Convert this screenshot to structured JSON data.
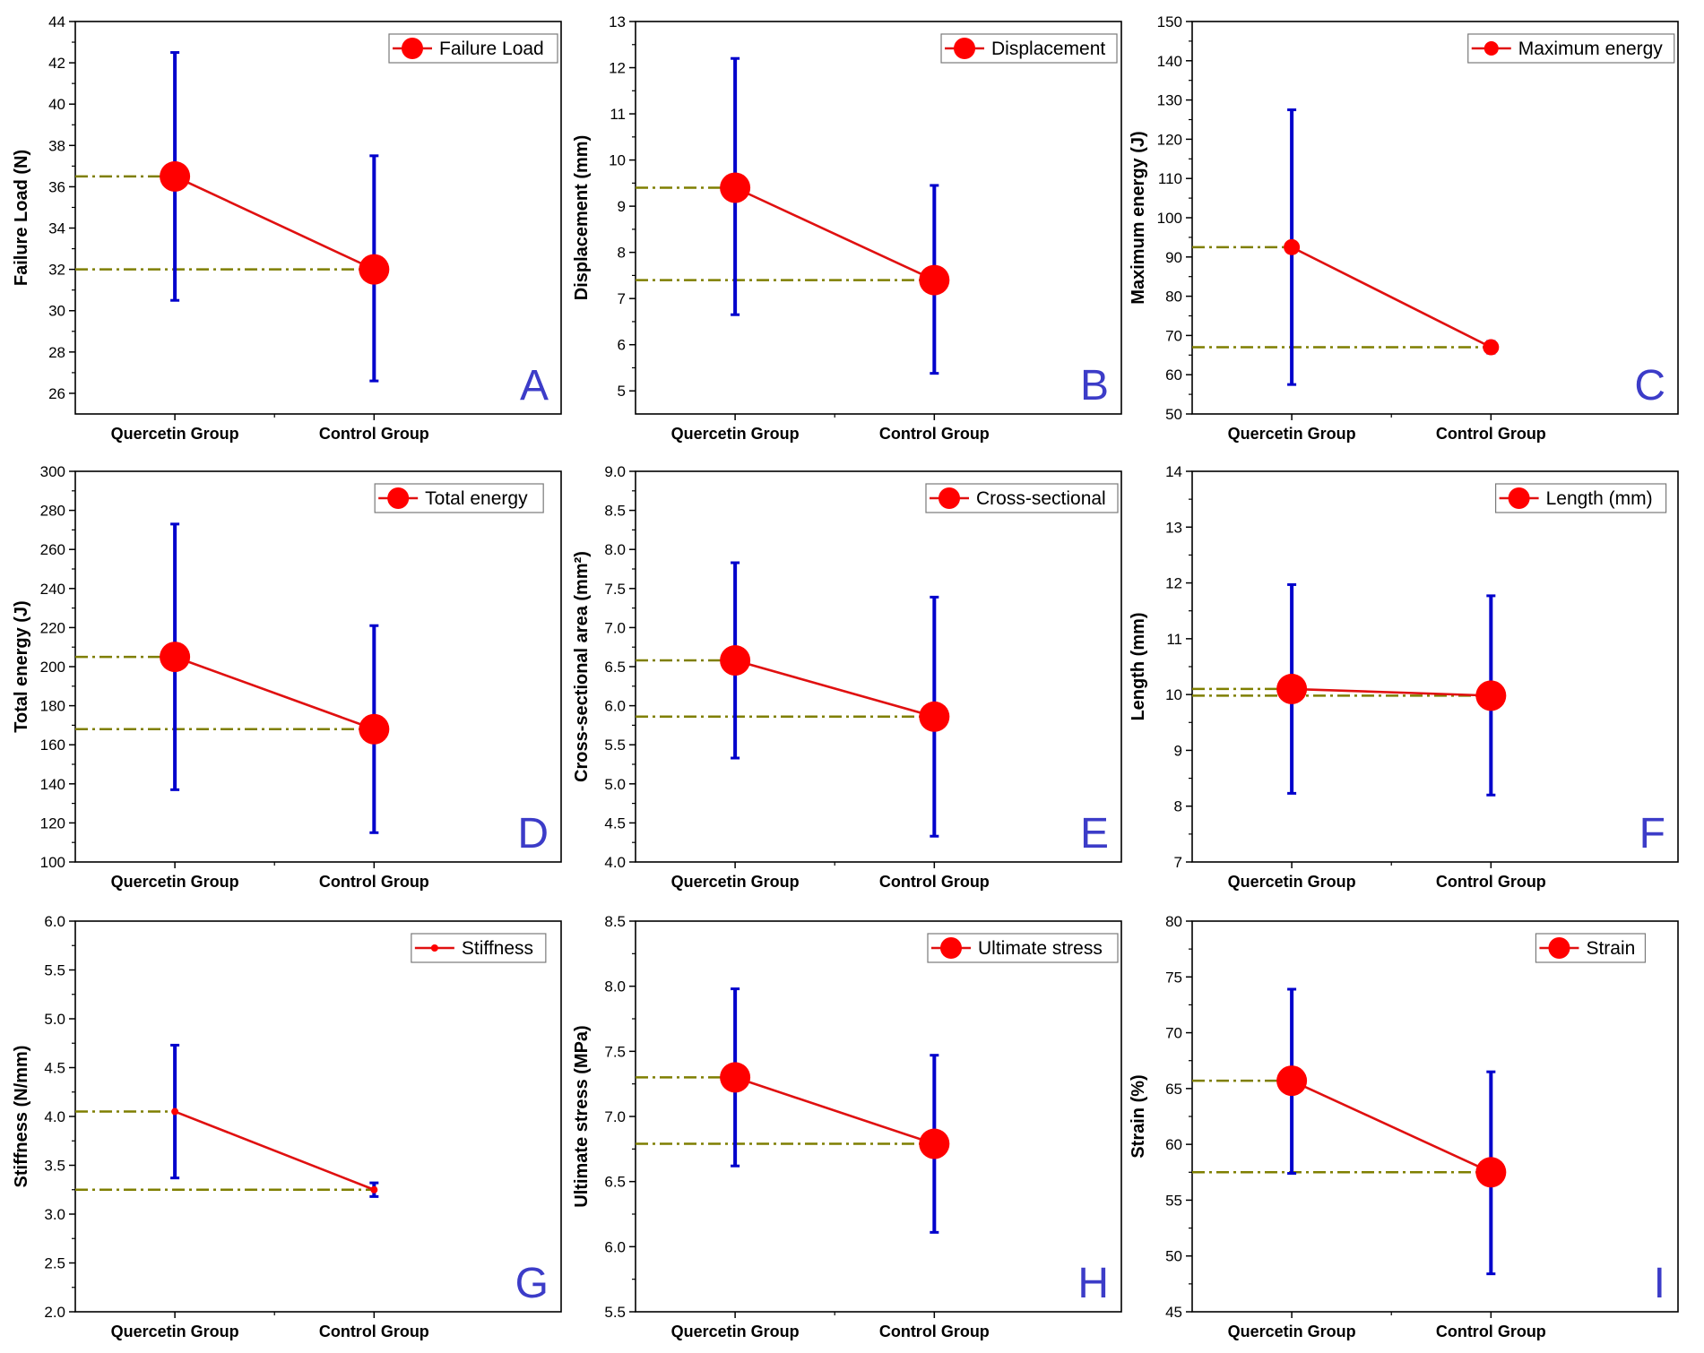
{
  "colors": {
    "mean_line": "#e01010",
    "marker": "#ff0000",
    "error_bar": "#0000cc",
    "reference_line": "#7f7f00",
    "panel_letter": "#3c3cc8"
  },
  "chart_data": [
    {
      "type": "line",
      "panel": "A",
      "ylabel": "Failure Load (N)",
      "legend": "Failure Load",
      "categories": [
        "Quercetin Group",
        "Control Group"
      ],
      "values": [
        36.5,
        32.0
      ],
      "error_low": [
        30.5,
        26.6
      ],
      "error_high": [
        42.5,
        37.5
      ],
      "ylim": [
        25,
        44
      ],
      "yticks": [
        "26",
        "28",
        "30",
        "32",
        "34",
        "36",
        "38",
        "40",
        "42",
        "44"
      ],
      "ytick_values": [
        26,
        28,
        30,
        32,
        34,
        36,
        38,
        40,
        42,
        44
      ],
      "marker": "large"
    },
    {
      "type": "line",
      "panel": "B",
      "ylabel": "Displacement (mm)",
      "legend": "Displacement",
      "categories": [
        "Quercetin Group",
        "Control Group"
      ],
      "values": [
        9.4,
        7.4
      ],
      "error_low": [
        6.65,
        5.38
      ],
      "error_high": [
        12.2,
        9.45
      ],
      "ylim": [
        4.5,
        13
      ],
      "yticks": [
        "5",
        "6",
        "7",
        "8",
        "9",
        "10",
        "11",
        "12",
        "13"
      ],
      "ytick_values": [
        5,
        6,
        7,
        8,
        9,
        10,
        11,
        12,
        13
      ],
      "marker": "large"
    },
    {
      "type": "line",
      "panel": "C",
      "ylabel": "Maximum energy (J)",
      "legend": "Maximum energy",
      "categories": [
        "Quercetin Group",
        "Control Group"
      ],
      "values": [
        92.5,
        67.0
      ],
      "error_low": [
        57.5,
        65.5
      ],
      "error_high": [
        127.5,
        68.5
      ],
      "ylim": [
        50,
        150
      ],
      "yticks": [
        "50",
        "60",
        "70",
        "80",
        "90",
        "100",
        "110",
        "120",
        "130",
        "140",
        "150"
      ],
      "ytick_values": [
        50,
        60,
        70,
        80,
        90,
        100,
        110,
        120,
        130,
        140,
        150
      ],
      "marker": "medium"
    },
    {
      "type": "line",
      "panel": "D",
      "ylabel": "Total energy (J)",
      "legend": "Total energy",
      "categories": [
        "Quercetin Group",
        "Control Group"
      ],
      "values": [
        205,
        168
      ],
      "error_low": [
        137,
        115
      ],
      "error_high": [
        273,
        221
      ],
      "ylim": [
        100,
        300
      ],
      "yticks": [
        "100",
        "120",
        "140",
        "160",
        "180",
        "200",
        "220",
        "240",
        "260",
        "280",
        "300"
      ],
      "ytick_values": [
        100,
        120,
        140,
        160,
        180,
        200,
        220,
        240,
        260,
        280,
        300
      ],
      "marker": "large"
    },
    {
      "type": "line",
      "panel": "E",
      "ylabel": "Cross-sectional area (mm²)",
      "legend": "Cross-sectional",
      "categories": [
        "Quercetin Group",
        "Control Group"
      ],
      "values": [
        6.58,
        5.86
      ],
      "error_low": [
        5.33,
        4.33
      ],
      "error_high": [
        7.83,
        7.39
      ],
      "ylim": [
        4.0,
        9.0
      ],
      "yticks": [
        "4.0",
        "4.5",
        "5.0",
        "5.5",
        "6.0",
        "6.5",
        "7.0",
        "7.5",
        "8.0",
        "8.5",
        "9.0"
      ],
      "ytick_values": [
        4.0,
        4.5,
        5.0,
        5.5,
        6.0,
        6.5,
        7.0,
        7.5,
        8.0,
        8.5,
        9.0
      ],
      "marker": "large"
    },
    {
      "type": "line",
      "panel": "F",
      "ylabel": "Length (mm)",
      "legend": "Length (mm)",
      "categories": [
        "Quercetin Group",
        "Control Group"
      ],
      "values": [
        10.1,
        9.98
      ],
      "error_low": [
        8.23,
        8.2
      ],
      "error_high": [
        11.97,
        11.77
      ],
      "ylim": [
        7,
        14
      ],
      "yticks": [
        "7",
        "8",
        "9",
        "10",
        "11",
        "12",
        "13",
        "14"
      ],
      "ytick_values": [
        7,
        8,
        9,
        10,
        11,
        12,
        13,
        14
      ],
      "marker": "large"
    },
    {
      "type": "line",
      "panel": "G",
      "ylabel": "Stiffness (N/mm)",
      "legend": "Stiffness",
      "categories": [
        "Quercetin Group",
        "Control Group"
      ],
      "values": [
        4.05,
        3.25
      ],
      "error_low": [
        3.37,
        3.18
      ],
      "error_high": [
        4.73,
        3.32
      ],
      "ylim": [
        2.0,
        6.0
      ],
      "yticks": [
        "2.0",
        "2.5",
        "3.0",
        "3.5",
        "4.0",
        "4.5",
        "5.0",
        "5.5",
        "6.0"
      ],
      "ytick_values": [
        2.0,
        2.5,
        3.0,
        3.5,
        4.0,
        4.5,
        5.0,
        5.5,
        6.0
      ],
      "marker": "small"
    },
    {
      "type": "line",
      "panel": "H",
      "ylabel": "Ultimate stress (MPa)",
      "legend": "Ultimate stress",
      "categories": [
        "Quercetin Group",
        "Control Group"
      ],
      "values": [
        7.3,
        6.79
      ],
      "error_low": [
        6.62,
        6.11
      ],
      "error_high": [
        7.98,
        7.47
      ],
      "ylim": [
        5.5,
        8.5
      ],
      "yticks": [
        "5.5",
        "6.0",
        "6.5",
        "7.0",
        "7.5",
        "8.0",
        "8.5"
      ],
      "ytick_values": [
        5.5,
        6.0,
        6.5,
        7.0,
        7.5,
        8.0,
        8.5
      ],
      "marker": "large"
    },
    {
      "type": "line",
      "panel": "I",
      "ylabel": "Strain (%)",
      "legend": "Strain",
      "categories": [
        "Quercetin Group",
        "Control Group"
      ],
      "values": [
        65.7,
        57.5
      ],
      "error_low": [
        57.4,
        48.4
      ],
      "error_high": [
        73.9,
        66.5
      ],
      "ylim": [
        45,
        80
      ],
      "yticks": [
        "45",
        "50",
        "55",
        "60",
        "65",
        "70",
        "75",
        "80"
      ],
      "ytick_values": [
        45,
        50,
        55,
        60,
        65,
        70,
        75,
        80
      ],
      "marker": "large"
    }
  ]
}
